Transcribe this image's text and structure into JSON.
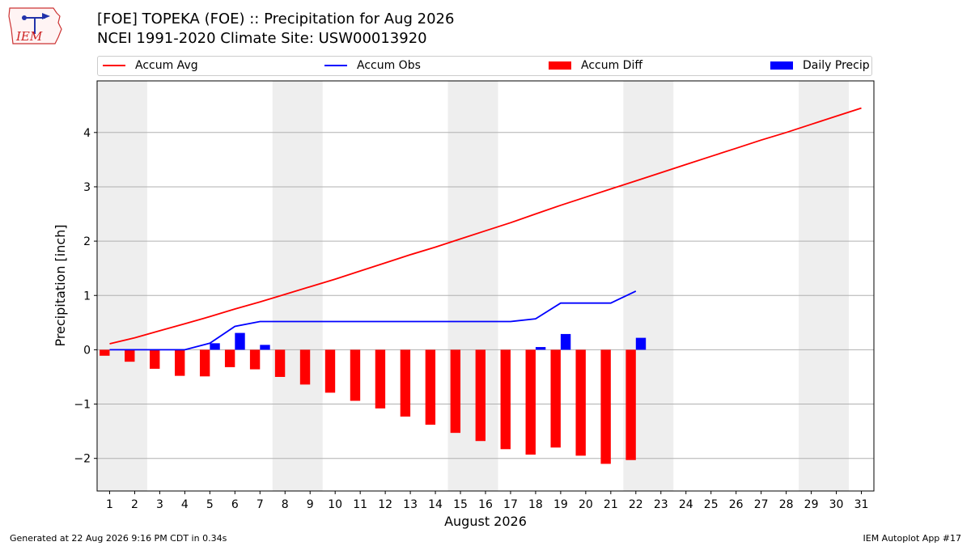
{
  "header": {
    "title_line1": "[FOE] TOPEKA (FOE) :: Precipitation for Aug 2026",
    "title_line2": "NCEI 1991-2020 Climate Site: USW00013920",
    "logo_text": "IEM"
  },
  "legend": {
    "items": [
      {
        "label": "Accum Avg",
        "color": "#ff0000",
        "kind": "line"
      },
      {
        "label": "Accum Obs",
        "color": "#0000ff",
        "kind": "line"
      },
      {
        "label": "Accum Diff",
        "color": "#ff0000",
        "kind": "bar"
      },
      {
        "label": "Daily Precip",
        "color": "#0000ff",
        "kind": "bar"
      }
    ]
  },
  "footer": {
    "left": "Generated at 22 Aug 2026 9:16 PM CDT in 0.34s",
    "right": "IEM Autoplot App #17"
  },
  "chart_data": {
    "type": "bar",
    "xlabel": "August 2026",
    "ylabel": "Precipitation [inch]",
    "xlim": [
      0.5,
      31.5
    ],
    "ylim": [
      -2.6,
      4.95
    ],
    "yticks": [
      -2,
      -1,
      0,
      1,
      2,
      3,
      4
    ],
    "ytick_labels": [
      "−2",
      "−1",
      "0",
      "1",
      "2",
      "3",
      "4"
    ],
    "grid": "horizontal",
    "weekend_shading": [
      [
        0.5,
        2.5
      ],
      [
        7.5,
        9.5
      ],
      [
        14.5,
        16.5
      ],
      [
        21.5,
        23.5
      ],
      [
        28.5,
        30.5
      ]
    ],
    "days": [
      1,
      2,
      3,
      4,
      5,
      6,
      7,
      8,
      9,
      10,
      11,
      12,
      13,
      14,
      15,
      16,
      17,
      18,
      19,
      20,
      21,
      22,
      23,
      24,
      25,
      26,
      27,
      28,
      29,
      30,
      31
    ],
    "series": [
      {
        "name": "Accum Avg",
        "kind": "line",
        "color": "#ff0000",
        "values": [
          0.11,
          0.22,
          0.35,
          0.48,
          0.61,
          0.75,
          0.88,
          1.02,
          1.16,
          1.3,
          1.45,
          1.6,
          1.75,
          1.89,
          2.04,
          2.19,
          2.34,
          2.5,
          2.66,
          2.81,
          2.96,
          3.11,
          3.26,
          3.41,
          3.56,
          3.71,
          3.86,
          4.0,
          4.15,
          4.3,
          4.45
        ]
      },
      {
        "name": "Accum Obs",
        "kind": "line",
        "color": "#0000ff",
        "values": [
          0.0,
          0.0,
          0.0,
          0.0,
          0.12,
          0.43,
          0.52,
          0.52,
          0.52,
          0.52,
          0.52,
          0.52,
          0.52,
          0.52,
          0.52,
          0.52,
          0.52,
          0.57,
          0.86,
          0.86,
          0.86,
          1.08
        ]
      },
      {
        "name": "Accum Diff",
        "kind": "bar",
        "color": "#ff0000",
        "values": [
          -0.11,
          -0.22,
          -0.35,
          -0.48,
          -0.49,
          -0.32,
          -0.36,
          -0.5,
          -0.64,
          -0.79,
          -0.94,
          -1.08,
          -1.23,
          -1.38,
          -1.53,
          -1.68,
          -1.83,
          -1.93,
          -1.8,
          -1.95,
          -2.1,
          -2.03
        ]
      },
      {
        "name": "Daily Precip",
        "kind": "bar",
        "color": "#0000ff",
        "values": [
          0,
          0,
          0,
          0,
          0.12,
          0.31,
          0.09,
          0,
          0,
          0,
          0,
          0,
          0,
          0,
          0,
          0,
          0,
          0.05,
          0.29,
          0,
          0,
          0.22
        ]
      }
    ]
  }
}
